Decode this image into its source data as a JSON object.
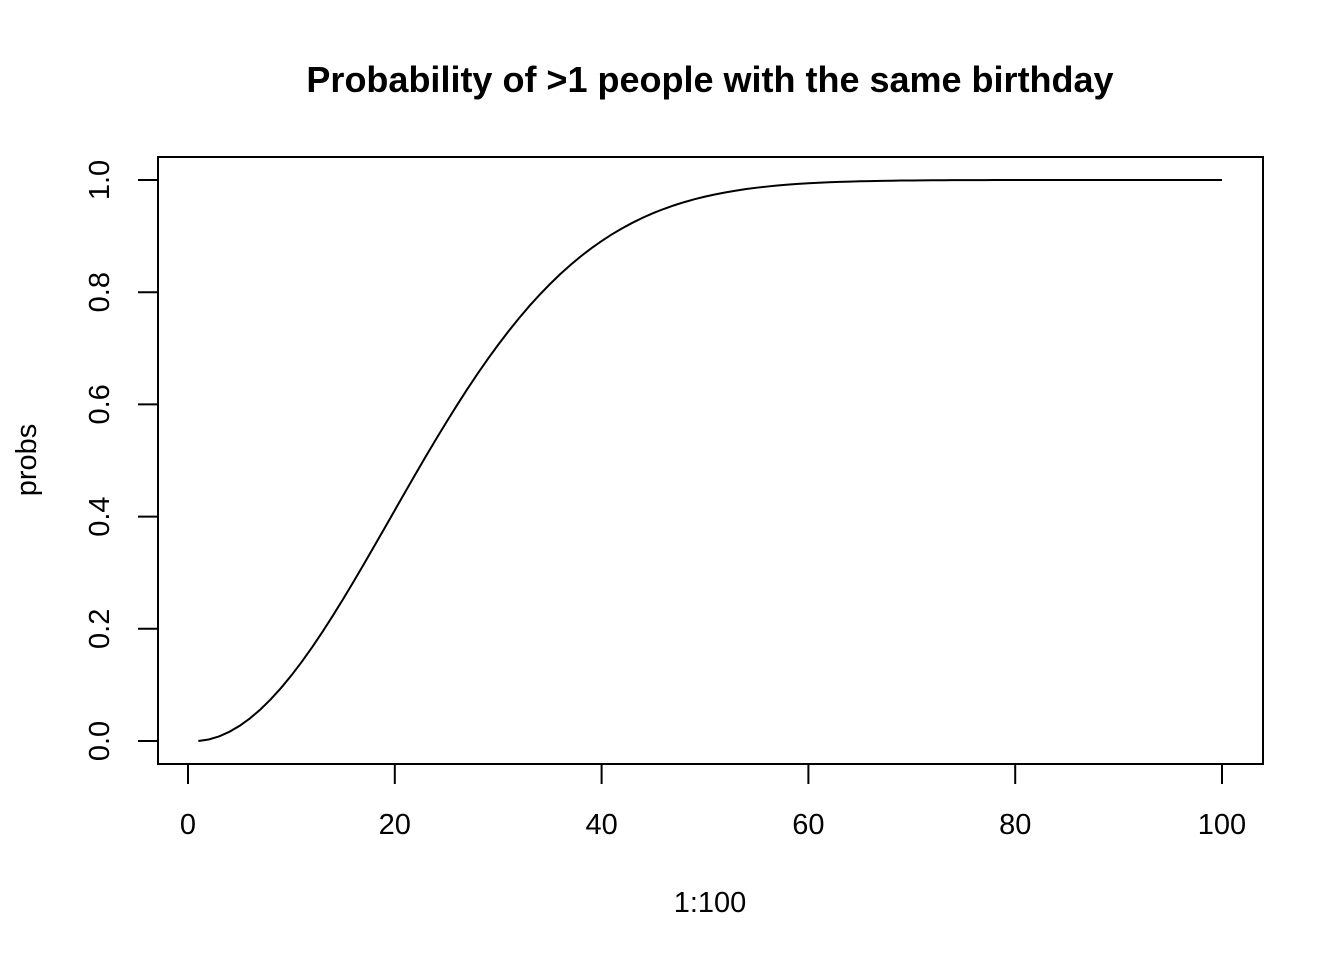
{
  "chart_data": {
    "type": "line",
    "title": "Probability of >1 people with the same birthday",
    "xlabel": "1:100",
    "ylabel": "probs",
    "xlim": [
      1,
      100
    ],
    "ylim": [
      0,
      1
    ],
    "x_ticks": [
      0,
      20,
      40,
      60,
      80,
      100
    ],
    "x_tick_labels": [
      "0",
      "20",
      "40",
      "60",
      "80",
      "100"
    ],
    "y_ticks": [
      0,
      0.2,
      0.4,
      0.6,
      0.8,
      1.0
    ],
    "y_tick_labels": [
      "0.0",
      "0.2",
      "0.4",
      "0.6",
      "0.8",
      "1.0"
    ],
    "grid": false,
    "legend": "none",
    "line_color": "#000000",
    "x": [
      1,
      2,
      3,
      4,
      5,
      6,
      7,
      8,
      9,
      10,
      11,
      12,
      13,
      14,
      15,
      16,
      17,
      18,
      19,
      20,
      21,
      22,
      23,
      24,
      25,
      26,
      27,
      28,
      29,
      30,
      31,
      32,
      33,
      34,
      35,
      36,
      37,
      38,
      39,
      40,
      41,
      42,
      43,
      44,
      45,
      46,
      47,
      48,
      49,
      50,
      51,
      52,
      53,
      54,
      55,
      56,
      57,
      58,
      59,
      60,
      61,
      62,
      63,
      64,
      65,
      66,
      67,
      68,
      69,
      70,
      71,
      72,
      73,
      74,
      75,
      76,
      77,
      78,
      79,
      80,
      81,
      82,
      83,
      84,
      85,
      86,
      87,
      88,
      89,
      90,
      91,
      92,
      93,
      94,
      95,
      96,
      97,
      98,
      99,
      100
    ],
    "y": [
      0.0,
      0.0027,
      0.0082,
      0.0164,
      0.0271,
      0.0405,
      0.0562,
      0.0743,
      0.0946,
      0.1169,
      0.1411,
      0.167,
      0.1944,
      0.2231,
      0.2529,
      0.2836,
      0.315,
      0.3469,
      0.3791,
      0.4114,
      0.4437,
      0.4757,
      0.5073,
      0.5383,
      0.5687,
      0.5982,
      0.6269,
      0.6545,
      0.681,
      0.7063,
      0.7305,
      0.7533,
      0.775,
      0.7953,
      0.8144,
      0.8322,
      0.8487,
      0.8641,
      0.8782,
      0.8912,
      0.9032,
      0.914,
      0.9239,
      0.9329,
      0.941,
      0.9483,
      0.9548,
      0.9606,
      0.9658,
      0.9704,
      0.9744,
      0.978,
      0.9811,
      0.9839,
      0.9863,
      0.9883,
      0.9901,
      0.9917,
      0.993,
      0.9941,
      0.9951,
      0.9959,
      0.9966,
      0.9972,
      0.9977,
      0.9981,
      0.9984,
      0.9987,
      0.999,
      0.9992,
      0.9993,
      0.9995,
      0.9996,
      0.9997,
      0.9997,
      0.9998,
      0.9998,
      0.9999,
      0.9999,
      0.9999,
      0.9999,
      1.0,
      1.0,
      1.0,
      1.0,
      1.0,
      1.0,
      1.0,
      1.0,
      1.0,
      1.0,
      1.0,
      1.0,
      1.0,
      1.0,
      1.0,
      1.0,
      1.0,
      1.0,
      1.0
    ]
  }
}
